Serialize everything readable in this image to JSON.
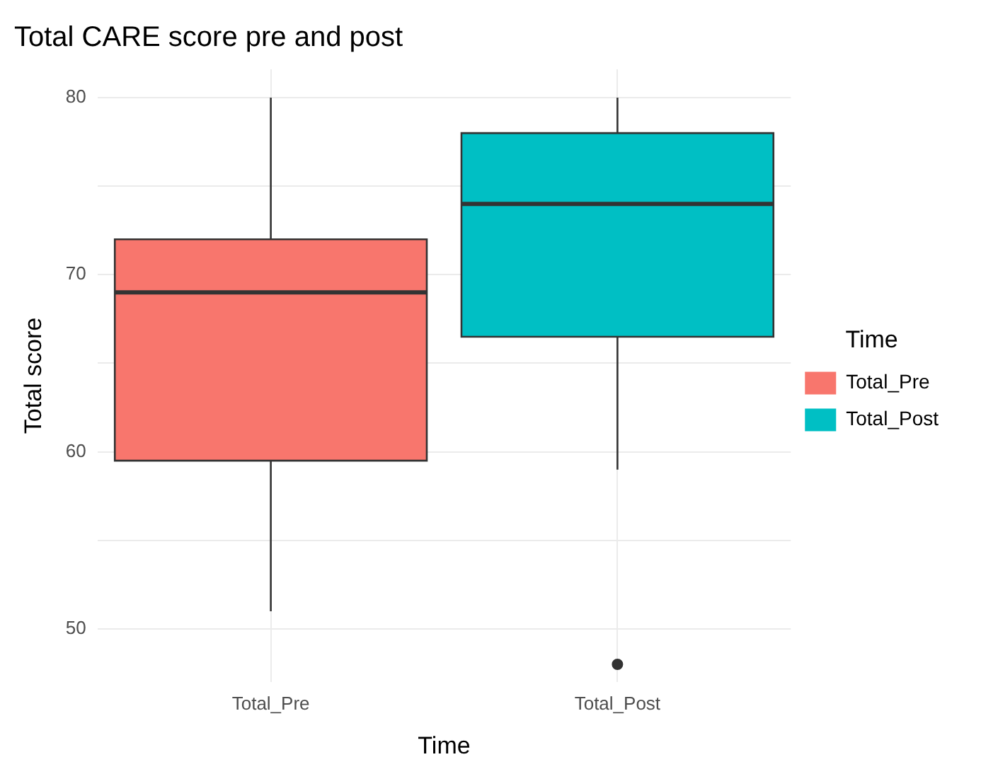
{
  "chart_data": {
    "type": "box",
    "title": "Total CARE score pre and post",
    "xlabel": "Time",
    "ylabel": "Total score",
    "legend_title": "Time",
    "legend": "right",
    "grid": true,
    "categories": [
      "Total_Pre",
      "Total_Post"
    ],
    "series": [
      {
        "name": "Total_Pre",
        "color": "#f8766d",
        "boxes": [
          {
            "low": 51,
            "q1": 59.5,
            "median": 69,
            "q3": 72,
            "high": 80
          },
          null
        ]
      },
      {
        "name": "Total_Post",
        "color": "#00bfc4",
        "boxes": [
          null,
          {
            "low": 59,
            "q1": 66.5,
            "median": 74,
            "q3": 78,
            "high": 80,
            "outliers": [
              48
            ]
          }
        ]
      }
    ],
    "ylim": [
      47,
      81.6
    ],
    "yticks": [
      50,
      {
        "value": 55,
        "label": null
      },
      60,
      {
        "value": 65,
        "label": null
      },
      70,
      {
        "value": 75,
        "label": null
      },
      80
    ]
  }
}
